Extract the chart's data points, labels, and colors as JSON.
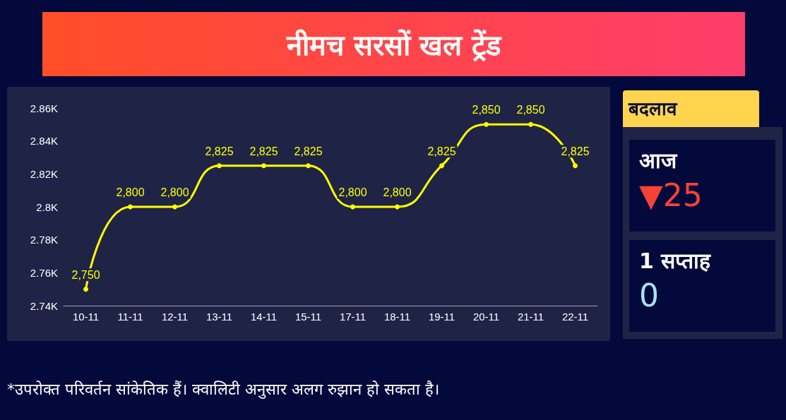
{
  "chart_data": {
    "type": "line",
    "title": "नीमच सरसों खल ट्रेंड",
    "categories": [
      "10-11",
      "11-11",
      "12-11",
      "13-11",
      "14-11",
      "15-11",
      "17-11",
      "18-11",
      "19-11",
      "20-11",
      "21-11",
      "22-11"
    ],
    "series": [
      {
        "color": "#ffff00",
        "values": [
          2750,
          2800,
          2800,
          2825,
          2825,
          2825,
          2800,
          2800,
          2825,
          2850,
          2850,
          2825
        ],
        "value_labels": [
          "2,750",
          "2,800",
          "2,800",
          "2,825",
          "2,825",
          "2,825",
          "2,800",
          "2,800",
          "2,825",
          "2,850",
          "2,850",
          "2,825"
        ]
      }
    ],
    "ylim": [
      2740,
      2860
    ],
    "yticks": [
      {
        "value": 2740,
        "label": "2.74K"
      },
      {
        "value": 2760,
        "label": "2.76K"
      },
      {
        "value": 2780,
        "label": "2.78K"
      },
      {
        "value": 2800,
        "label": "2.8K"
      },
      {
        "value": 2820,
        "label": "2.82K"
      },
      {
        "value": 2840,
        "label": "2.84K"
      },
      {
        "value": 2860,
        "label": "2.86K"
      }
    ],
    "marker": "circle",
    "annotations": [
      "*उपरोक्त परिवर्तन सांकेतिक हैं। क्वालिटी अनुसार अलग रुझान हो सकता है।",
      "बदलाव",
      "आज",
      "▼25",
      "1 सप्ताह",
      "0"
    ]
  }
}
